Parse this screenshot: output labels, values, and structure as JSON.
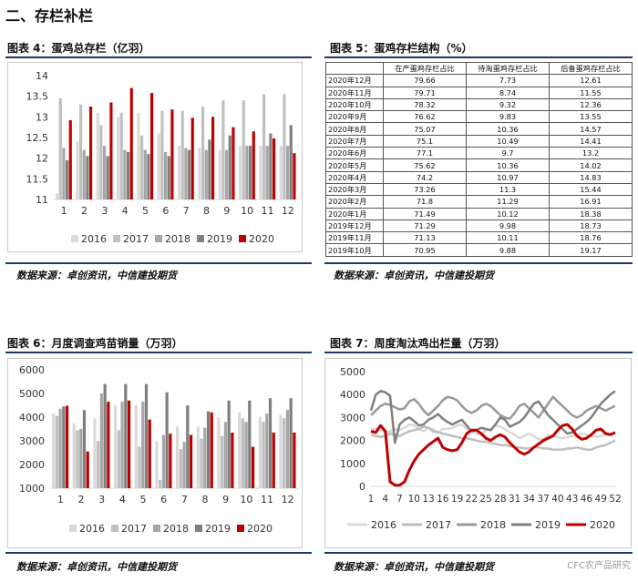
{
  "section_title": "二、存栏补栏",
  "source_text": "数据来源：卓创资讯，中信建投期货",
  "watermark": "CFC农产品研究",
  "fig4": {
    "title": "图表 4：蛋鸡总存栏（亿羽）",
    "chart_data": {
      "type": "bar",
      "categories": [
        "1",
        "2",
        "3",
        "4",
        "5",
        "6",
        "7",
        "8",
        "9",
        "10",
        "11",
        "12"
      ],
      "ylim": [
        11,
        14
      ],
      "yticks": [
        "11",
        "11.5",
        "12",
        "12.5",
        "13",
        "13.5",
        "14"
      ],
      "series": [
        {
          "name": "2016",
          "color": "#d9d9d9",
          "values": [
            11.15,
            12.4,
            13.1,
            13.0,
            13.1,
            12.6,
            12.3,
            12.25,
            12.2,
            12.3,
            12.3,
            12.3
          ]
        },
        {
          "name": "2017",
          "color": "#bfbfbf",
          "values": [
            13.45,
            13.3,
            12.8,
            13.1,
            12.55,
            13.15,
            13.15,
            13.25,
            13.4,
            13.4,
            13.55,
            13.55
          ]
        },
        {
          "name": "2018",
          "color": "#a6a6a6",
          "values": [
            12.25,
            12.2,
            12.3,
            12.2,
            12.2,
            12.15,
            12.25,
            12.2,
            12.2,
            12.3,
            12.3,
            12.3
          ]
        },
        {
          "name": "2019",
          "color": "#7f7f7f",
          "values": [
            11.95,
            12.05,
            12.05,
            12.15,
            12.1,
            12.05,
            12.2,
            12.45,
            12.55,
            12.3,
            12.6,
            12.8
          ]
        },
        {
          "name": "2020",
          "color": "#c00000",
          "values": [
            12.92,
            13.25,
            13.35,
            13.7,
            13.58,
            13.18,
            12.98,
            13.0,
            12.75,
            12.65,
            12.48,
            12.12
          ]
        }
      ]
    }
  },
  "fig5": {
    "title": "图表 5：蛋鸡存栏结构（%）",
    "headers": [
      "",
      "在产蛋鸡存栏占比",
      "待淘蛋鸡存栏占比",
      "后备蛋鸡存栏占比"
    ],
    "rows": [
      [
        "2020年12月",
        "79.66",
        "7.73",
        "12.61"
      ],
      [
        "2020年11月",
        "79.71",
        "8.74",
        "11.55"
      ],
      [
        "2020年10月",
        "78.32",
        "9.32",
        "12.36"
      ],
      [
        "2020年9月",
        "76.62",
        "9.83",
        "13.55"
      ],
      [
        "2020年8月",
        "75.07",
        "10.36",
        "14.57"
      ],
      [
        "2020年7月",
        "75.1",
        "10.49",
        "14.41"
      ],
      [
        "2020年6月",
        "77.1",
        "9.7",
        "13.2"
      ],
      [
        "2020年5月",
        "75.62",
        "10.36",
        "14.02"
      ],
      [
        "2020年4月",
        "74.2",
        "10.97",
        "14.83"
      ],
      [
        "2020年3月",
        "73.26",
        "11.3",
        "15.44"
      ],
      [
        "2020年2月",
        "71.8",
        "11.29",
        "16.91"
      ],
      [
        "2020年1月",
        "71.49",
        "10.12",
        "18.38"
      ],
      [
        "2019年12月",
        "71.29",
        "9.98",
        "18.73"
      ],
      [
        "2019年11月",
        "71.13",
        "10.11",
        "18.76"
      ],
      [
        "2019年10月",
        "70.95",
        "9.88",
        "19.17"
      ]
    ]
  },
  "fig6": {
    "title": "图表 6：月度调查鸡苗销量（万羽）",
    "chart_data": {
      "type": "bar",
      "categories": [
        "1",
        "2",
        "3",
        "4",
        "5",
        "6",
        "7",
        "8",
        "9",
        "10",
        "11",
        "12"
      ],
      "ylim": [
        1000,
        6000
      ],
      "yticks": [
        "1000",
        "2000",
        "3000",
        "4000",
        "5000",
        "6000"
      ],
      "series": [
        {
          "name": "2016",
          "color": "#d9d9d9",
          "values": [
            4150,
            3750,
            3950,
            4500,
            4500,
            3000,
            3600,
            3600,
            4000,
            4200,
            4000,
            4100
          ]
        },
        {
          "name": "2017",
          "color": "#bfbfbf",
          "values": [
            4050,
            3450,
            3000,
            3450,
            2750,
            1350,
            2650,
            3100,
            3200,
            3950,
            3800,
            3950
          ]
        },
        {
          "name": "2018",
          "color": "#a6a6a6",
          "values": [
            4350,
            3500,
            5000,
            4650,
            4650,
            3250,
            2950,
            3550,
            3800,
            3800,
            4150,
            4300
          ]
        },
        {
          "name": "2019",
          "color": "#7f7f7f",
          "values": [
            4450,
            4300,
            5400,
            5400,
            5400,
            5050,
            4500,
            4250,
            4700,
            4700,
            4800,
            4800
          ]
        },
        {
          "name": "2020",
          "color": "#c00000",
          "values": [
            4480,
            2550,
            4650,
            4700,
            3900,
            3300,
            3250,
            4200,
            3350,
            2750,
            3350,
            3350
          ]
        }
      ]
    }
  },
  "fig7": {
    "title": "图表 7：周度淘汰鸡出栏量（万羽）",
    "chart_data": {
      "type": "line",
      "x_ticks": [
        "1",
        "4",
        "7",
        "10",
        "13",
        "16",
        "19",
        "22",
        "25",
        "28",
        "31",
        "34",
        "37",
        "40",
        "43",
        "46",
        "49",
        "52"
      ],
      "ylim": [
        0,
        5000
      ],
      "yticks": [
        "0",
        "1000",
        "2000",
        "3000",
        "4000",
        "5000"
      ],
      "series": [
        {
          "name": "2016",
          "color": "#d9d9d9",
          "width": 2.5,
          "values": [
            2500,
            2500,
            2450,
            2350,
            2400,
            2500,
            2450,
            2550,
            2700,
            2650,
            2500,
            2400,
            2550,
            2500,
            2350,
            2500,
            2500,
            2550,
            2650,
            2700,
            2500,
            2400,
            2300,
            2250,
            2450,
            2500,
            2650,
            2600,
            2500,
            2350,
            2250,
            2100,
            2200,
            2300,
            2200,
            2050,
            2050,
            2250,
            2200,
            2150,
            2100,
            2150,
            2200,
            2250,
            2300,
            2250,
            2200,
            2150,
            2200,
            2250,
            2300,
            2350
          ]
        },
        {
          "name": "2017",
          "color": "#bfbfbf",
          "width": 2.5,
          "values": [
            2250,
            2200,
            2150,
            2200,
            2300,
            2250,
            2200,
            2300,
            2400,
            2450,
            2500,
            2600,
            2550,
            2400,
            2350,
            2300,
            2250,
            2200,
            2150,
            2100,
            2100,
            2050,
            2000,
            1950,
            1950,
            1900,
            1850,
            1800,
            1800,
            1750,
            1700,
            1700,
            1650,
            1650,
            1700,
            1700,
            1650,
            1650,
            1600,
            1600,
            1600,
            1650,
            1650,
            1700,
            1650,
            1600,
            1600,
            1700,
            1750,
            1800,
            1900,
            2000
          ]
        },
        {
          "name": "2018",
          "color": "#999999",
          "width": 2.5,
          "values": [
            3100,
            3300,
            3500,
            3600,
            3550,
            3450,
            3350,
            3400,
            3700,
            3800,
            3600,
            3300,
            3100,
            3300,
            3500,
            3750,
            3900,
            3850,
            3750,
            3500,
            3300,
            3200,
            3300,
            3500,
            3600,
            3500,
            3300,
            3100,
            3000,
            2950,
            3200,
            3500,
            3600,
            3400,
            3200,
            3000,
            3300,
            3600,
            3900,
            3700,
            3500,
            3300,
            3100,
            3000,
            3100,
            3300,
            3400,
            3500,
            3400,
            3300,
            3400,
            3500
          ]
        },
        {
          "name": "2019",
          "color": "#7f7f7f",
          "width": 2.5,
          "values": [
            3300,
            4000,
            4150,
            4100,
            3950,
            1900,
            2700,
            2900,
            3000,
            2850,
            2650,
            2700,
            2900,
            3000,
            3150,
            2950,
            2800,
            2700,
            2800,
            2900,
            2650,
            2400,
            2450,
            2550,
            2500,
            2450,
            2700,
            3000,
            2900,
            2600,
            2700,
            2800,
            3000,
            3300,
            3600,
            3700,
            3400,
            3100,
            2900,
            2700,
            2500,
            2300,
            2350,
            2500,
            2650,
            2800,
            3000,
            3300,
            3600,
            3800,
            4000,
            4150
          ]
        },
        {
          "name": "2020",
          "color": "#c00000",
          "width": 3,
          "values": [
            2400,
            2350,
            2650,
            2400,
            200,
            50,
            50,
            200,
            700,
            1100,
            1400,
            1600,
            1800,
            1950,
            2100,
            1700,
            1600,
            1550,
            1600,
            1900,
            2300,
            2450,
            2450,
            2300,
            2100,
            2000,
            2150,
            2250,
            2150,
            1900,
            1700,
            1500,
            1400,
            1500,
            1700,
            1850,
            2000,
            2100,
            2200,
            2450,
            2650,
            2700,
            2500,
            2200,
            2050,
            2100,
            2250,
            2450,
            2500,
            2300,
            2250,
            2350
          ]
        }
      ]
    }
  }
}
